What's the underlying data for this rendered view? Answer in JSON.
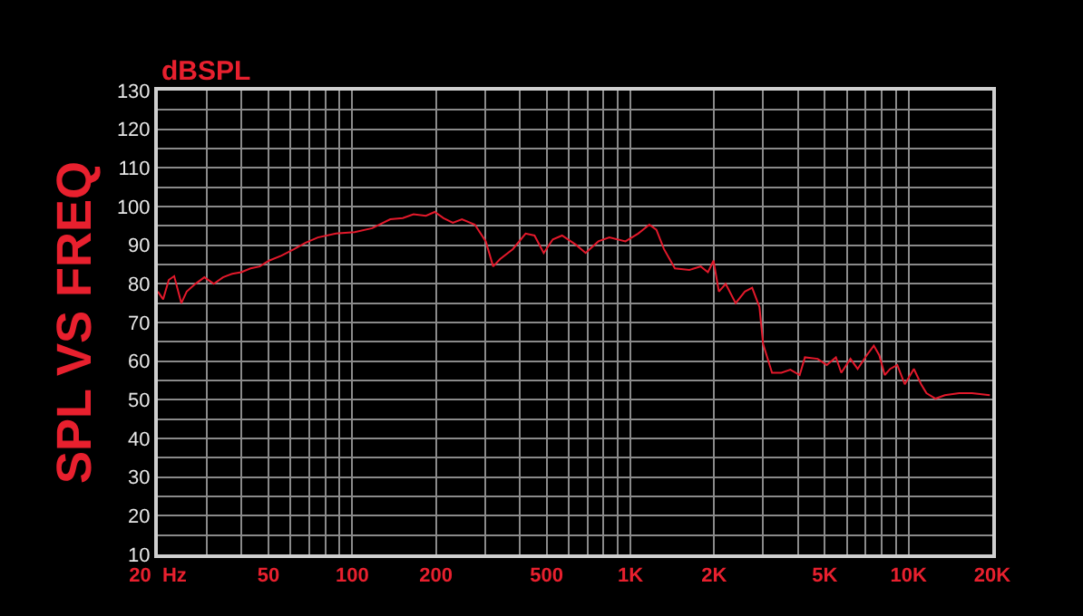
{
  "chart_data": {
    "type": "line",
    "title": "SPL VS FREQ",
    "ylabel": "dBSPL",
    "x": [
      20,
      20.9,
      21.9,
      22.9,
      24.3,
      25.4,
      27.3,
      29.4,
      31.8,
      34.3,
      37,
      39.9,
      43.1,
      46.5,
      50.2,
      55.7,
      61.9,
      67.8,
      75.2,
      87.4,
      102,
      118,
      137,
      152,
      166,
      184,
      198,
      213,
      230,
      248,
      276,
      302,
      321,
      340,
      378,
      420,
      452,
      488,
      526,
      568,
      640,
      690,
      767,
      840,
      960,
      1066,
      1170,
      1240,
      1320,
      1445,
      1630,
      1790,
      1900,
      1990,
      2080,
      2200,
      2390,
      2580,
      2740,
      2910,
      3000,
      3230,
      3490,
      3760,
      4060,
      4240,
      4710,
      5080,
      5480,
      5730,
      6180,
      6560,
      7070,
      7500,
      7850,
      8210,
      8590,
      9110,
      9690,
      10450,
      11100,
      11600,
      12500,
      13500,
      15200,
      16900,
      19600
    ],
    "series": [
      {
        "color": "#e3192b",
        "values": [
          78,
          76,
          81,
          82,
          75,
          78,
          80,
          81.7,
          80,
          81.7,
          82.6,
          83,
          84,
          84.5,
          86,
          87.3,
          89,
          90.6,
          92,
          93,
          93.4,
          94.4,
          96.7,
          97,
          98,
          97.6,
          98.6,
          97,
          95.8,
          96.7,
          95.3,
          91,
          84.5,
          86.4,
          89,
          93,
          92.5,
          88,
          91.5,
          92.5,
          90,
          88,
          91,
          92,
          91,
          93,
          95.3,
          94,
          89,
          84,
          83.6,
          84.5,
          83,
          86,
          78,
          80,
          75,
          78,
          79,
          74,
          64.4,
          57,
          57,
          57.8,
          56.4,
          61,
          60.6,
          59,
          61,
          57,
          60.6,
          58,
          61.5,
          64,
          61.5,
          56.4,
          58,
          59,
          54,
          58,
          54,
          51.7,
          50.3,
          51.2,
          51.7,
          51.7,
          51.2
        ]
      }
    ],
    "log": "x",
    "xlim": [
      20,
      20000
    ],
    "xticks": [
      {
        "value": 20,
        "label": "20  Hz"
      },
      {
        "value": 30,
        "label": null
      },
      {
        "value": 40,
        "label": null
      },
      50,
      {
        "value": 60,
        "label": null
      },
      {
        "value": 70,
        "label": null
      },
      {
        "value": 80,
        "label": null
      },
      {
        "value": 90,
        "label": null
      },
      100,
      200,
      {
        "value": 300,
        "label": null
      },
      {
        "value": 400,
        "label": null
      },
      500,
      {
        "value": 600,
        "label": null
      },
      {
        "value": 700,
        "label": null
      },
      {
        "value": 800,
        "label": null
      },
      {
        "value": 900,
        "label": null
      },
      {
        "value": 1000,
        "label": "1K"
      },
      {
        "value": 2000,
        "label": "2K"
      },
      {
        "value": 3000,
        "label": null
      },
      {
        "value": 4000,
        "label": null
      },
      {
        "value": 5000,
        "label": "5K"
      },
      {
        "value": 6000,
        "label": null
      },
      {
        "value": 7000,
        "label": null
      },
      {
        "value": 8000,
        "label": null
      },
      {
        "value": 9000,
        "label": null
      },
      {
        "value": 10000,
        "label": "10K"
      },
      {
        "value": 20000,
        "label": "20K"
      }
    ],
    "ylim": [
      10,
      130
    ],
    "yticks": [
      10,
      {
        "value": 15,
        "label": null
      },
      20,
      {
        "value": 25,
        "label": null
      },
      30,
      {
        "value": 35,
        "label": null
      },
      40,
      {
        "value": 45,
        "label": null
      },
      50,
      {
        "value": 55,
        "label": null
      },
      60,
      {
        "value": 65,
        "label": null
      },
      70,
      {
        "value": 75,
        "label": null
      },
      80,
      {
        "value": 85,
        "label": null
      },
      90,
      {
        "value": 95,
        "label": null
      },
      100,
      {
        "value": 105,
        "label": null
      },
      110,
      {
        "value": 115,
        "label": null
      },
      120,
      {
        "value": 125,
        "label": null
      },
      130
    ],
    "grid": true,
    "marker": "none",
    "line_style": "solid"
  }
}
